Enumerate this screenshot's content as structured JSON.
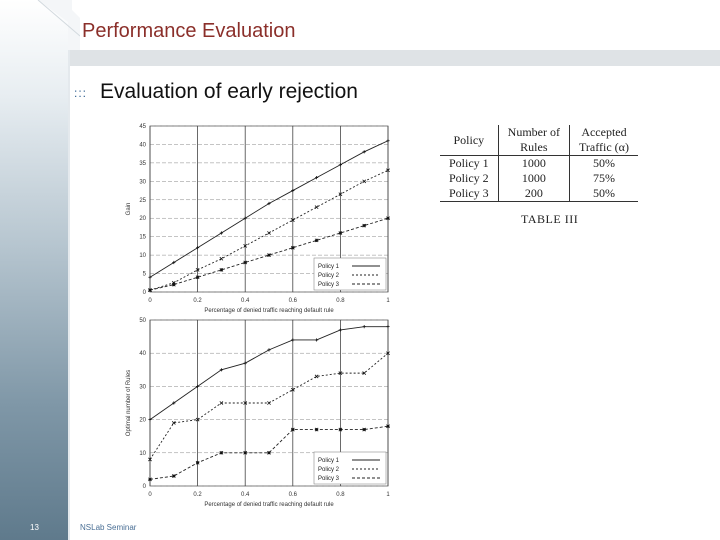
{
  "header": {
    "title": "Performance Evaluation"
  },
  "slide": {
    "bullet": ":::",
    "title": "Evaluation of early rejection"
  },
  "footer": {
    "page_number": "13",
    "text": "NSLab Seminar"
  },
  "table": {
    "headers": [
      "Policy",
      "Number of Rules",
      "Accepted Traffic (α)"
    ],
    "header_lines": [
      [
        "Policy"
      ],
      [
        "Number of",
        "Rules"
      ],
      [
        "Accepted",
        "Traffic (α)"
      ]
    ],
    "rows": [
      [
        "Policy 1",
        "1000",
        "50%"
      ],
      [
        "Policy 2",
        "1000",
        "75%"
      ],
      [
        "Policy 3",
        "200",
        "50%"
      ]
    ],
    "caption": "TABLE III"
  },
  "colors": {
    "header_title": "#8b2f2a",
    "bullet": "#2f5f8f",
    "footer_text": "#4a6f95"
  },
  "chart_data": [
    {
      "type": "line",
      "title": "",
      "xlabel": "Percentage of denied traffic reaching default rule",
      "ylabel": "Gain",
      "x": [
        0,
        0.1,
        0.2,
        0.3,
        0.4,
        0.5,
        0.6,
        0.7,
        0.8,
        0.9,
        1.0
      ],
      "xticks": [
        "0",
        "0.2",
        "0.4",
        "0.6",
        "0.8",
        "1"
      ],
      "yticks": [
        "0",
        "5",
        "10",
        "15",
        "20",
        "25",
        "30",
        "35",
        "40",
        "45"
      ],
      "xlim": [
        0,
        1
      ],
      "ylim": [
        0,
        45
      ],
      "grid": true,
      "legend_position": "bottom-right",
      "series": [
        {
          "name": "Policy 1",
          "values": [
            4,
            8,
            12,
            16,
            20,
            24,
            27.5,
            31,
            34.5,
            38,
            41
          ]
        },
        {
          "name": "Policy 2",
          "values": [
            0.5,
            2.5,
            6,
            9,
            12.5,
            16,
            19.5,
            23,
            26.5,
            30,
            33
          ]
        },
        {
          "name": "Policy 3",
          "values": [
            0.5,
            2,
            4,
            6,
            8,
            10,
            12,
            14,
            16,
            18,
            20
          ]
        }
      ]
    },
    {
      "type": "line",
      "title": "",
      "xlabel": "Percentage of denied traffic reaching default rule",
      "ylabel": "Optimal number of Rules",
      "x": [
        0,
        0.1,
        0.2,
        0.3,
        0.4,
        0.5,
        0.6,
        0.7,
        0.8,
        0.9,
        1.0
      ],
      "xticks": [
        "0",
        "0.2",
        "0.4",
        "0.6",
        "0.8",
        "1"
      ],
      "yticks": [
        "0",
        "10",
        "20",
        "30",
        "40",
        "50"
      ],
      "xlim": [
        0,
        1
      ],
      "ylim": [
        0,
        50
      ],
      "grid": true,
      "legend_position": "bottom-right",
      "series": [
        {
          "name": "Policy 1",
          "values": [
            20,
            25,
            30,
            35,
            37,
            41,
            44,
            44,
            47,
            48,
            48
          ]
        },
        {
          "name": "Policy 2",
          "values": [
            8,
            19,
            20,
            25,
            25,
            25,
            29,
            33,
            34,
            34,
            40
          ]
        },
        {
          "name": "Policy 3",
          "values": [
            2,
            3,
            7,
            10,
            10,
            10,
            17,
            17,
            17,
            17,
            18
          ]
        }
      ]
    }
  ]
}
